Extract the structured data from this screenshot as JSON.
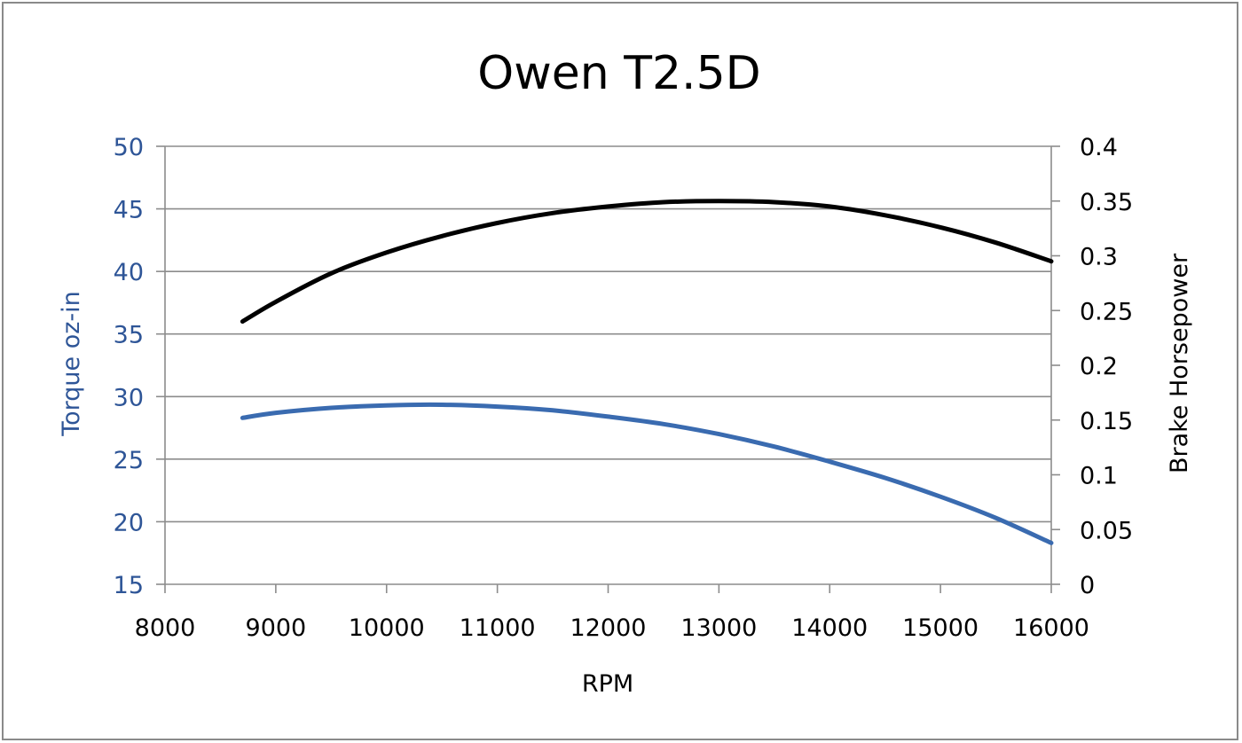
{
  "chart_data": {
    "type": "line",
    "title": "Owen T2.5D",
    "xlabel": "RPM",
    "ylabel": "Torque oz-in",
    "y2label": "Brake Horsepower",
    "xlim": [
      8000,
      16000
    ],
    "ylim": [
      15,
      50
    ],
    "y2lim": [
      0,
      0.4
    ],
    "grid": true,
    "legend": "none",
    "x_ticks": [
      "8000",
      "9000",
      "10000",
      "11000",
      "12000",
      "13000",
      "14000",
      "15000",
      "16000"
    ],
    "y_ticks": [
      "15",
      "20",
      "25",
      "30",
      "35",
      "40",
      "45",
      "50"
    ],
    "y2_ticks": [
      "0",
      "0.05",
      "0.1",
      "0.15",
      "0.2",
      "0.25",
      "0.3",
      "0.35",
      "0.4"
    ],
    "series": [
      {
        "axis": "left",
        "color": "#3a6bb0",
        "x": [
          8700,
          9000,
          9500,
          10000,
          10500,
          11000,
          11500,
          12000,
          12500,
          13000,
          13500,
          14000,
          14500,
          15000,
          15500,
          16000
        ],
        "values": [
          28.3,
          28.7,
          29.1,
          29.3,
          29.35,
          29.2,
          28.9,
          28.4,
          27.8,
          27.0,
          26.0,
          24.8,
          23.5,
          22.0,
          20.3,
          18.3
        ]
      },
      {
        "axis": "right",
        "color": "#000000",
        "x": [
          8700,
          9000,
          9500,
          10000,
          10500,
          11000,
          11500,
          12000,
          12500,
          13000,
          13500,
          14000,
          14500,
          15000,
          15500,
          16000
        ],
        "values": [
          0.24,
          0.258,
          0.284,
          0.303,
          0.318,
          0.33,
          0.339,
          0.345,
          0.349,
          0.35,
          0.349,
          0.345,
          0.337,
          0.326,
          0.312,
          0.295
        ]
      }
    ]
  }
}
